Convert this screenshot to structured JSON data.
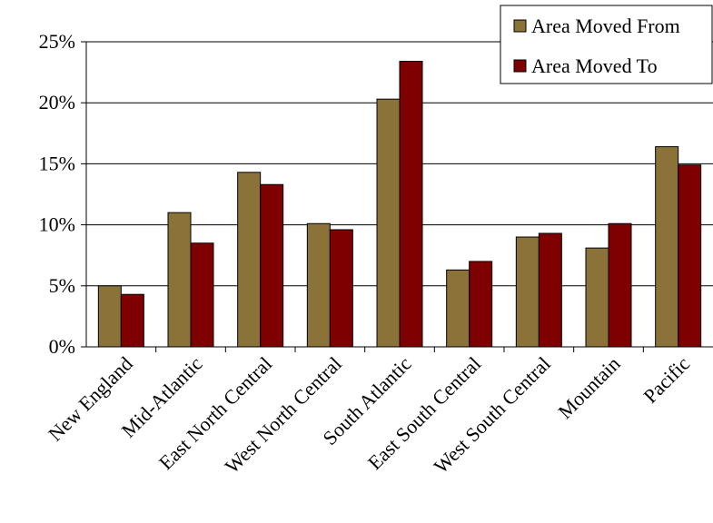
{
  "chart_data": {
    "type": "bar",
    "title": "",
    "xlabel": "",
    "ylabel": "",
    "categories": [
      "New England",
      "Mid-Atlantic",
      "East North Central",
      "West North Central",
      "South Atlantic",
      "East South Central",
      "West South Central",
      "Mountain",
      "Pacific"
    ],
    "series": [
      {
        "name": "Area Moved From",
        "color": "#8B7239",
        "values": [
          5.0,
          11.0,
          14.3,
          10.1,
          20.3,
          6.3,
          9.0,
          8.1,
          16.4
        ]
      },
      {
        "name": "Area Moved To",
        "color": "#7F0000",
        "values": [
          4.3,
          8.5,
          13.3,
          9.6,
          23.4,
          7.0,
          9.3,
          10.1,
          14.9
        ]
      }
    ],
    "ylim": [
      0,
      25
    ],
    "yticks": [
      0,
      5,
      10,
      15,
      20,
      25
    ],
    "ytick_labels": [
      "0%",
      "5%",
      "10%",
      "15%",
      "20%",
      "25%"
    ],
    "grid": true,
    "legend_position": "top-right"
  }
}
